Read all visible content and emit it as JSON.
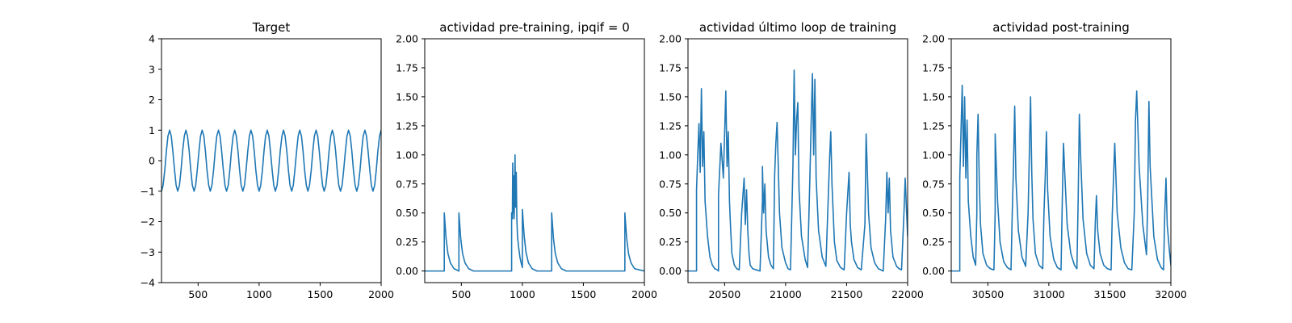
{
  "colors": {
    "line": "#1f77b4",
    "axis": "#000000",
    "background": "#ffffff"
  },
  "chart_data": [
    {
      "type": "line",
      "title": "Target",
      "xlabel": "",
      "ylabel": "",
      "xlim": [
        200,
        2000
      ],
      "ylim": [
        -4,
        4
      ],
      "xticks": [
        500,
        1000,
        1500,
        2000
      ],
      "yticks": [
        -4,
        -3,
        -2,
        -1,
        0,
        1,
        2,
        3,
        4
      ],
      "ytick_labels": [
        "−4",
        "−3",
        "−2",
        "−1",
        "0",
        "1",
        "2",
        "3",
        "4"
      ],
      "grid": false,
      "series": [
        {
          "x": [
            200,
            213,
            227,
            240,
            253,
            267,
            280,
            293,
            307,
            320,
            333,
            347,
            360,
            373,
            387,
            400,
            413,
            427,
            440,
            453,
            467,
            480,
            493,
            507,
            520,
            533,
            547,
            560,
            573,
            587,
            600,
            613,
            627,
            640,
            653,
            667,
            680,
            693,
            707,
            720,
            733,
            747,
            760,
            773,
            787,
            800,
            813,
            827,
            840,
            853,
            867,
            880,
            893,
            907,
            920,
            933,
            947,
            960,
            973,
            987,
            1000,
            1013,
            1027,
            1040,
            1053,
            1067,
            1080,
            1093,
            1107,
            1120,
            1133,
            1147,
            1160,
            1173,
            1187,
            1200,
            1213,
            1227,
            1240,
            1253,
            1267,
            1280,
            1293,
            1307,
            1320,
            1333,
            1347,
            1360,
            1373,
            1387,
            1400,
            1413,
            1427,
            1440,
            1453,
            1467,
            1480,
            1493,
            1507,
            1520,
            1533,
            1547,
            1560,
            1573,
            1587,
            1600,
            1613,
            1627,
            1640,
            1653,
            1667,
            1680,
            1693,
            1707,
            1720,
            1733,
            1747,
            1760,
            1773,
            1787,
            1800,
            1813,
            1827,
            1840,
            1853,
            1867,
            1880,
            1893,
            1907,
            1920,
            1933,
            1947,
            1960,
            1973,
            1987,
            2000
          ],
          "y": [
            -1,
            -0.81,
            -0.31,
            0.31,
            0.81,
            1,
            0.81,
            0.31,
            -0.31,
            -0.81,
            -1,
            -0.81,
            -0.31,
            0.31,
            0.81,
            1,
            0.81,
            0.31,
            -0.31,
            -0.81,
            -1,
            -0.81,
            -0.31,
            0.31,
            0.81,
            1,
            0.81,
            0.31,
            -0.31,
            -0.81,
            -1,
            -0.81,
            -0.31,
            0.31,
            0.81,
            1,
            0.81,
            0.31,
            -0.31,
            -0.81,
            -1,
            -0.81,
            -0.31,
            0.31,
            0.81,
            1,
            0.81,
            0.31,
            -0.31,
            -0.81,
            -1,
            -0.81,
            -0.31,
            0.31,
            0.81,
            1,
            0.81,
            0.31,
            -0.31,
            -0.81,
            -1,
            -0.81,
            -0.31,
            0.31,
            0.81,
            1,
            0.81,
            0.31,
            -0.31,
            -0.81,
            -1,
            -0.81,
            -0.31,
            0.31,
            0.81,
            1,
            0.81,
            0.31,
            -0.31,
            -0.81,
            -1,
            -0.81,
            -0.31,
            0.31,
            0.81,
            1,
            0.81,
            0.31,
            -0.31,
            -0.81,
            -1,
            -0.81,
            -0.31,
            0.31,
            0.81,
            1,
            0.81,
            0.31,
            -0.31,
            -0.81,
            -1,
            -0.81,
            -0.31,
            0.31,
            0.81,
            1,
            0.81,
            0.31,
            -0.31,
            -0.81,
            -1,
            -0.81,
            -0.31,
            0.31,
            0.81,
            1,
            0.81,
            0.31,
            -0.31,
            -0.81,
            -1,
            -0.81,
            -0.31,
            0.31,
            0.81,
            1,
            0.81,
            0.31,
            -0.31,
            -0.81,
            -1,
            -0.81,
            -0.31,
            0.31,
            0.81,
            1
          ]
        }
      ]
    },
    {
      "type": "line",
      "title": "actividad pre-training, ipqif = 0",
      "xlabel": "",
      "ylabel": "",
      "xlim": [
        200,
        2000
      ],
      "ylim": [
        -0.1,
        2.0
      ],
      "xticks": [
        500,
        1000,
        1500,
        2000
      ],
      "yticks": [
        0,
        0.25,
        0.5,
        0.75,
        1.0,
        1.25,
        1.5,
        1.75,
        2.0
      ],
      "ytick_labels": [
        "0.00",
        "0.25",
        "0.50",
        "0.75",
        "1.00",
        "1.25",
        "1.50",
        "1.75",
        "2.00"
      ],
      "grid": false,
      "series": [
        {
          "x": [
            200,
            360,
            360,
            375,
            390,
            410,
            440,
            480,
            480,
            495,
            510,
            530,
            560,
            600,
            700,
            800,
            900,
            912,
            912,
            918,
            921,
            925,
            928,
            932,
            935,
            940,
            945,
            950,
            955,
            960,
            970,
            980,
            990,
            1000,
            1000,
            1015,
            1030,
            1050,
            1080,
            1120,
            1200,
            1240,
            1240,
            1255,
            1270,
            1290,
            1320,
            1360,
            1500,
            1700,
            1840,
            1840,
            1855,
            1870,
            1890,
            1920,
            1960,
            2000
          ],
          "y": [
            0,
            0,
            0.5,
            0.28,
            0.15,
            0.07,
            0.02,
            0,
            0.5,
            0.28,
            0.15,
            0.07,
            0.02,
            0,
            0,
            0,
            0,
            0,
            0.5,
            0.45,
            0.93,
            0.5,
            0.82,
            0.45,
            0.55,
            1.0,
            0.55,
            0.85,
            0.45,
            0.3,
            0.2,
            0.12,
            0.07,
            0.03,
            0.53,
            0.3,
            0.16,
            0.07,
            0.02,
            0,
            0,
            0,
            0.5,
            0.28,
            0.15,
            0.07,
            0.02,
            0,
            0,
            0,
            0,
            0.5,
            0.28,
            0.15,
            0.07,
            0.02,
            0.01,
            0
          ]
        }
      ]
    },
    {
      "type": "line",
      "title": "actividad último loop de training",
      "xlabel": "",
      "ylabel": "",
      "xlim": [
        20200,
        22000
      ],
      "ylim": [
        -0.1,
        2.0
      ],
      "xticks": [
        20500,
        21000,
        21500,
        22000
      ],
      "yticks": [
        0,
        0.25,
        0.5,
        0.75,
        1.0,
        1.25,
        1.5,
        1.75,
        2.0
      ],
      "ytick_labels": [
        "0.00",
        "0.25",
        "0.50",
        "0.75",
        "1.00",
        "1.25",
        "1.50",
        "1.75",
        "2.00"
      ],
      "grid": false,
      "series": [
        {
          "x": [
            20200,
            20270,
            20270,
            20280,
            20290,
            20300,
            20310,
            20320,
            20330,
            20340,
            20360,
            20380,
            20400,
            20420,
            20440,
            20450,
            20450,
            20470,
            20490,
            20510,
            20520,
            20530,
            20540,
            20550,
            20560,
            20580,
            20600,
            20620,
            20640,
            20660,
            20670,
            20680,
            20690,
            20700,
            20710,
            20730,
            20760,
            20790,
            20810,
            20810,
            20820,
            20830,
            20840,
            20860,
            20880,
            20900,
            20910,
            20920,
            20930,
            20940,
            20950,
            20970,
            21000,
            21020,
            21040,
            21060,
            21070,
            21080,
            21090,
            21100,
            21110,
            21130,
            21160,
            21180,
            21200,
            21210,
            21220,
            21230,
            21240,
            21250,
            21270,
            21300,
            21330,
            21360,
            21370,
            21380,
            21390,
            21400,
            21420,
            21450,
            21480,
            21500,
            21520,
            21530,
            21540,
            21560,
            21590,
            21620,
            21650,
            21660,
            21670,
            21680,
            21700,
            21730,
            21760,
            21800,
            21820,
            21830,
            21840,
            21850,
            21860,
            21880,
            21910,
            21930,
            21950,
            21970,
            21980,
            22000
          ],
          "y": [
            0,
            0,
            0.7,
            1.0,
            1.27,
            0.85,
            1.57,
            0.9,
            1.2,
            0.6,
            0.3,
            0.12,
            0.05,
            0.02,
            0.01,
            0,
            0.65,
            1.1,
            0.8,
            1.55,
            0.9,
            1.2,
            0.6,
            0.35,
            0.15,
            0.05,
            0.02,
            0.01,
            0.5,
            0.8,
            0.4,
            0.7,
            0.35,
            0.15,
            0.05,
            0.02,
            0.01,
            0,
            0.6,
            0.9,
            0.5,
            0.75,
            0.35,
            0.12,
            0.05,
            0.02,
            0.82,
            1.1,
            1.28,
            0.9,
            0.5,
            0.2,
            0.07,
            0.02,
            0.01,
            0.9,
            1.73,
            1.0,
            1.3,
            1.45,
            0.7,
            0.3,
            0.1,
            0.03,
            0.85,
            1.3,
            1.7,
            1.0,
            1.65,
            0.8,
            0.35,
            0.12,
            0.04,
            0.95,
            1.2,
            0.75,
            0.5,
            0.25,
            0.09,
            0.03,
            0.01,
            0.5,
            0.85,
            0.4,
            0.25,
            0.1,
            0.03,
            0.01,
            0.4,
            1.18,
            0.85,
            0.5,
            0.2,
            0.07,
            0.02,
            0,
            0.45,
            0.85,
            0.5,
            0.8,
            0.35,
            0.12,
            0.04,
            0.02,
            0.01,
            0.5,
            0.8,
            0.3
          ]
        }
      ]
    },
    {
      "type": "line",
      "title": "actividad post-training",
      "xlabel": "",
      "ylabel": "",
      "xlim": [
        30200,
        32000
      ],
      "ylim": [
        -0.1,
        2.0
      ],
      "xticks": [
        30500,
        31000,
        31500,
        32000
      ],
      "yticks": [
        0,
        0.25,
        0.5,
        0.75,
        1.0,
        1.25,
        1.5,
        1.75,
        2.0
      ],
      "ytick_labels": [
        "0.00",
        "0.25",
        "0.50",
        "0.75",
        "1.00",
        "1.25",
        "1.50",
        "1.75",
        "2.00"
      ],
      "grid": false,
      "series": [
        {
          "x": [
            30200,
            30270,
            30270,
            30280,
            30290,
            30300,
            30310,
            30320,
            30330,
            30340,
            30360,
            30380,
            30400,
            30410,
            30410,
            30420,
            30430,
            30440,
            30460,
            30490,
            30520,
            30550,
            30560,
            30560,
            30580,
            30600,
            30630,
            30660,
            30690,
            30700,
            30710,
            30720,
            30730,
            30750,
            30780,
            30810,
            30830,
            30840,
            30850,
            30860,
            30870,
            30890,
            30920,
            30950,
            30960,
            30970,
            30980,
            30990,
            31010,
            31040,
            31070,
            31100,
            31110,
            31120,
            31130,
            31150,
            31180,
            31210,
            31230,
            31240,
            31250,
            31260,
            31280,
            31310,
            31340,
            31370,
            31380,
            31390,
            31400,
            31420,
            31450,
            31480,
            31510,
            31520,
            31530,
            31540,
            31560,
            31590,
            31620,
            31650,
            31680,
            31700,
            31710,
            31720,
            31740,
            31770,
            31800,
            31810,
            31820,
            31830,
            31840,
            31860,
            31890,
            31920,
            31940,
            31950,
            31960,
            31970,
            31990,
            32000
          ],
          "y": [
            0,
            0,
            0.8,
            1.2,
            1.6,
            0.9,
            1.5,
            0.8,
            1.3,
            0.6,
            0.3,
            0.12,
            0.05,
            0.5,
            1.0,
            1.35,
            0.75,
            0.4,
            0.15,
            0.05,
            0.02,
            0.01,
            0.5,
            1.18,
            0.6,
            0.25,
            0.08,
            0.03,
            0.01,
            0.5,
            0.9,
            1.42,
            0.8,
            0.35,
            0.12,
            0.04,
            0.5,
            1.0,
            1.5,
            0.85,
            0.45,
            0.15,
            0.05,
            0.02,
            0.5,
            0.8,
            1.2,
            0.7,
            0.3,
            0.1,
            0.03,
            0.01,
            0.6,
            1.1,
            0.85,
            0.4,
            0.15,
            0.05,
            0.02,
            0.6,
            1.35,
            1.0,
            0.45,
            0.15,
            0.05,
            0.02,
            0.4,
            0.65,
            0.35,
            0.15,
            0.05,
            0.02,
            0.01,
            0.5,
            0.8,
            1.1,
            0.5,
            0.2,
            0.07,
            0.02,
            0.01,
            0.5,
            1.3,
            1.55,
            0.9,
            0.4,
            0.14,
            0.6,
            1.46,
            0.9,
            0.7,
            0.3,
            0.1,
            0.03,
            0.01,
            0.5,
            0.8,
            0.4,
            0.15,
            0.05
          ]
        }
      ]
    }
  ]
}
